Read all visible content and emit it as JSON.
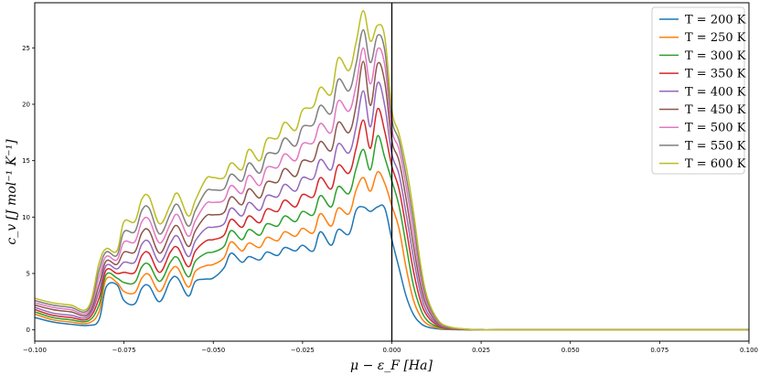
{
  "chart_data": {
    "type": "line",
    "xlabel": "μ − ε_F  [Ha]",
    "ylabel": "c_v  [J mol⁻¹ K⁻¹]",
    "xlim": [
      -0.1,
      0.1
    ],
    "ylim": [
      -1.0,
      29.0
    ],
    "x_ticks": [
      -0.1,
      -0.075,
      -0.05,
      -0.025,
      0.0,
      0.025,
      0.05,
      0.075,
      0.1
    ],
    "x_tick_labels": [
      "−0.100",
      "−0.075",
      "−0.050",
      "−0.025",
      "0.000",
      "0.025",
      "0.050",
      "0.075",
      "0.100"
    ],
    "y_ticks": [
      0,
      5,
      10,
      15,
      20,
      25
    ],
    "y_tick_labels": [
      "0",
      "5",
      "10",
      "15",
      "20",
      "25"
    ],
    "vline_x": 0.0,
    "grid": false,
    "legend_position": "top-right",
    "x": [
      -0.1,
      -0.095,
      -0.09,
      -0.085,
      -0.082,
      -0.08,
      -0.077,
      -0.075,
      -0.072,
      -0.07,
      -0.068,
      -0.065,
      -0.062,
      -0.06,
      -0.057,
      -0.055,
      -0.052,
      -0.05,
      -0.047,
      -0.045,
      -0.042,
      -0.04,
      -0.037,
      -0.035,
      -0.032,
      -0.03,
      -0.027,
      -0.025,
      -0.022,
      -0.02,
      -0.017,
      -0.015,
      -0.012,
      -0.01,
      -0.008,
      -0.006,
      -0.004,
      -0.002,
      0.0,
      0.002,
      0.004,
      0.006,
      0.008,
      0.01,
      0.013,
      0.016,
      0.02,
      0.025,
      0.03,
      0.05,
      0.075,
      0.1
    ],
    "series": [
      {
        "name": "T = 200 K",
        "color": "#1f77b4",
        "values": [
          1.1,
          0.7,
          0.5,
          0.4,
          0.9,
          3.8,
          4.0,
          2.6,
          2.3,
          3.7,
          3.9,
          2.5,
          4.4,
          4.6,
          3.0,
          4.3,
          4.5,
          4.6,
          5.5,
          6.8,
          6.0,
          6.5,
          6.2,
          6.9,
          6.6,
          7.3,
          7.0,
          7.5,
          7.0,
          8.7,
          7.5,
          8.9,
          8.5,
          10.6,
          10.9,
          10.5,
          10.9,
          10.8,
          8.0,
          5.5,
          3.0,
          1.4,
          0.6,
          0.25,
          0.08,
          0.03,
          0.01,
          0.0,
          0.0,
          0.0,
          0.0,
          0.0
        ]
      },
      {
        "name": "T = 250 K",
        "color": "#ff7f0e",
        "values": [
          1.4,
          0.9,
          0.7,
          0.6,
          1.6,
          4.5,
          4.2,
          3.4,
          3.3,
          4.6,
          4.9,
          3.4,
          5.2,
          5.5,
          3.8,
          5.2,
          5.7,
          5.8,
          6.4,
          7.8,
          7.0,
          7.7,
          7.3,
          8.2,
          7.9,
          8.7,
          8.3,
          9.0,
          8.6,
          10.3,
          9.2,
          10.8,
          10.3,
          12.4,
          13.5,
          12.3,
          14.0,
          13.0,
          11.0,
          9.0,
          5.5,
          2.7,
          1.2,
          0.5,
          0.15,
          0.05,
          0.02,
          0.0,
          0.0,
          0.0,
          0.0,
          0.0
        ]
      },
      {
        "name": "T = 300 K",
        "color": "#2ca02c",
        "values": [
          1.6,
          1.1,
          0.9,
          0.8,
          2.2,
          4.9,
          4.6,
          4.2,
          4.2,
          5.6,
          5.8,
          4.3,
          6.0,
          6.4,
          4.7,
          6.1,
          6.8,
          6.9,
          7.4,
          8.8,
          8.0,
          8.9,
          8.4,
          9.4,
          9.2,
          10.1,
          9.6,
          10.5,
          10.2,
          11.9,
          10.9,
          12.7,
          12.1,
          14.3,
          16.0,
          14.2,
          17.2,
          15.3,
          13.2,
          11.0,
          7.5,
          4.0,
          1.9,
          0.8,
          0.25,
          0.08,
          0.03,
          0.0,
          0.0,
          0.0,
          0.0,
          0.0
        ]
      },
      {
        "name": "T = 350 K",
        "color": "#d62728",
        "values": [
          1.8,
          1.3,
          1.1,
          1.0,
          2.8,
          5.3,
          5.0,
          5.1,
          5.1,
          6.6,
          6.8,
          5.1,
          6.9,
          7.3,
          5.6,
          7.0,
          7.9,
          8.0,
          8.4,
          9.8,
          9.1,
          10.1,
          9.5,
          10.7,
          10.5,
          11.5,
          10.9,
          12.0,
          11.8,
          13.5,
          12.5,
          14.6,
          13.9,
          16.1,
          18.6,
          16.1,
          19.6,
          17.6,
          14.5,
          12.5,
          9.0,
          5.3,
          2.6,
          1.2,
          0.35,
          0.12,
          0.04,
          0.0,
          0.0,
          0.0,
          0.0,
          0.0
        ]
      },
      {
        "name": "T = 400 K",
        "color": "#9467bd",
        "values": [
          2.0,
          1.5,
          1.3,
          1.2,
          3.4,
          5.7,
          5.4,
          6.0,
          6.0,
          7.6,
          7.8,
          6.0,
          7.7,
          8.3,
          6.5,
          7.9,
          9.0,
          9.1,
          9.4,
          10.8,
          10.1,
          11.3,
          10.6,
          11.9,
          11.8,
          12.9,
          12.3,
          13.5,
          13.4,
          15.1,
          14.2,
          16.5,
          15.7,
          18.0,
          21.2,
          18.0,
          21.9,
          19.9,
          15.6,
          13.8,
          10.3,
          6.5,
          3.3,
          1.5,
          0.45,
          0.15,
          0.05,
          0.0,
          0.0,
          0.0,
          0.0,
          0.0
        ]
      },
      {
        "name": "T = 450 K",
        "color": "#8c564b",
        "values": [
          2.2,
          1.8,
          1.6,
          1.4,
          4.0,
          6.1,
          5.8,
          6.9,
          6.9,
          8.6,
          8.8,
          6.8,
          8.6,
          9.2,
          7.4,
          8.8,
          10.1,
          10.2,
          10.4,
          11.8,
          11.1,
          12.5,
          11.7,
          13.1,
          13.1,
          14.3,
          13.6,
          15.0,
          15.0,
          16.7,
          15.9,
          18.4,
          17.5,
          19.9,
          23.8,
          19.9,
          23.6,
          22.0,
          16.8,
          15.0,
          11.6,
          7.6,
          4.0,
          1.9,
          0.55,
          0.18,
          0.06,
          0.0,
          0.0,
          0.0,
          0.0,
          0.0
        ]
      },
      {
        "name": "T = 500 K",
        "color": "#e377c2",
        "values": [
          2.4,
          2.0,
          1.8,
          1.6,
          4.7,
          6.5,
          6.2,
          7.8,
          7.8,
          9.6,
          9.8,
          7.7,
          9.4,
          10.2,
          8.3,
          9.7,
          11.2,
          11.3,
          11.5,
          12.8,
          12.1,
          13.7,
          12.8,
          14.4,
          14.4,
          15.6,
          15.0,
          16.5,
          16.6,
          18.3,
          17.5,
          20.3,
          19.4,
          21.7,
          25.0,
          21.8,
          24.9,
          23.5,
          17.8,
          16.0,
          12.7,
          8.7,
          4.7,
          2.2,
          0.65,
          0.22,
          0.07,
          0.0,
          0.0,
          0.0,
          0.0,
          0.0
        ]
      },
      {
        "name": "T = 550 K",
        "color": "#7f7f7f",
        "values": [
          2.6,
          2.2,
          2.0,
          1.8,
          5.3,
          6.9,
          6.6,
          8.7,
          8.7,
          10.6,
          10.8,
          8.5,
          10.3,
          11.1,
          9.2,
          10.6,
          12.3,
          12.4,
          12.5,
          13.8,
          13.2,
          14.8,
          13.9,
          15.6,
          15.7,
          17.0,
          16.3,
          18.0,
          18.2,
          19.9,
          19.2,
          22.2,
          21.2,
          23.6,
          26.6,
          23.7,
          26.1,
          24.8,
          18.7,
          16.8,
          13.6,
          9.7,
          5.3,
          2.5,
          0.75,
          0.25,
          0.08,
          0.0,
          0.0,
          0.0,
          0.0,
          0.0
        ]
      },
      {
        "name": "T = 600 K",
        "color": "#bcbd22",
        "values": [
          2.8,
          2.4,
          2.2,
          2.0,
          5.9,
          7.2,
          7.0,
          9.6,
          9.6,
          11.6,
          11.8,
          9.4,
          11.1,
          12.1,
          10.1,
          11.5,
          13.4,
          13.5,
          13.5,
          14.8,
          14.2,
          16.0,
          15.0,
          16.9,
          17.0,
          18.4,
          17.7,
          19.5,
          19.8,
          21.5,
          20.9,
          24.1,
          23.0,
          25.5,
          28.3,
          25.6,
          27.0,
          26.0,
          19.5,
          17.4,
          14.5,
          10.6,
          5.9,
          2.8,
          0.85,
          0.28,
          0.09,
          0.0,
          0.0,
          0.0,
          0.0,
          0.0
        ]
      }
    ]
  }
}
